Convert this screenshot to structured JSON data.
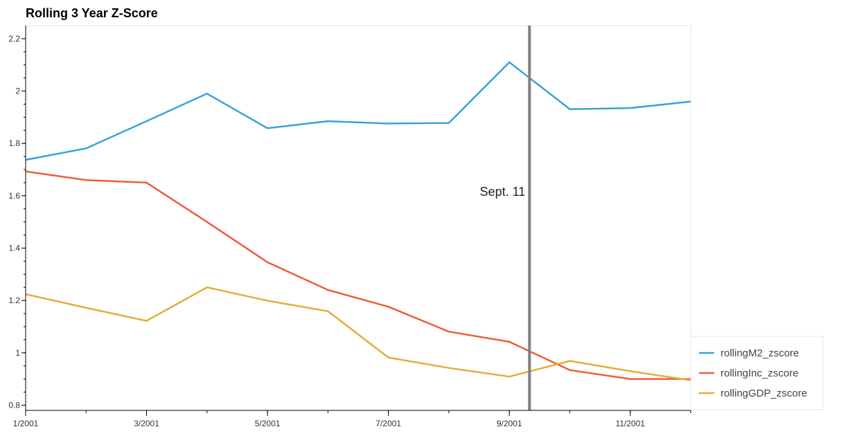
{
  "chart_data": {
    "type": "line",
    "title": "Rolling 3 Year Z-Score",
    "xlabel": "",
    "ylabel": "",
    "x": [
      "2001-01",
      "2001-02",
      "2001-03",
      "2001-04",
      "2001-05",
      "2001-06",
      "2001-07",
      "2001-08",
      "2001-09",
      "2001-10",
      "2001-11",
      "2001-12"
    ],
    "xlim": [
      "2001-01-01",
      "2001-12-01"
    ],
    "x_ticks": [
      "1/2001",
      "3/2001",
      "5/2001",
      "7/2001",
      "9/2001",
      "11/2001"
    ],
    "ylim": [
      0.78,
      2.25
    ],
    "y_ticks": [
      "0.8",
      "1",
      "1.2",
      "1.4",
      "1.6",
      "1.8",
      "2",
      "2.2"
    ],
    "grid": false,
    "legend_position": "bottom-right",
    "series": [
      {
        "name": "rollingM2_zscore",
        "color": "#3aa2d6",
        "values": [
          1.737,
          1.781,
          1.885,
          1.99,
          1.858,
          1.885,
          1.876,
          1.878,
          2.11,
          1.931,
          1.935,
          1.96
        ]
      },
      {
        "name": "rollingInc_zscore",
        "color": "#f05a3a",
        "values": [
          1.693,
          1.66,
          1.65,
          1.5,
          1.346,
          1.24,
          1.176,
          1.081,
          1.042,
          0.934,
          0.9,
          0.9
        ]
      },
      {
        "name": "rollingGDP_zscore",
        "color": "#e3ad3b",
        "values": [
          1.224,
          1.172,
          1.122,
          1.25,
          1.199,
          1.159,
          0.982,
          0.942,
          0.909,
          0.969,
          0.93,
          0.895
        ]
      }
    ],
    "annotations": [
      {
        "type": "vline",
        "date": "2001-09-11",
        "label": "Sept. 11",
        "color": "#808080"
      }
    ]
  }
}
